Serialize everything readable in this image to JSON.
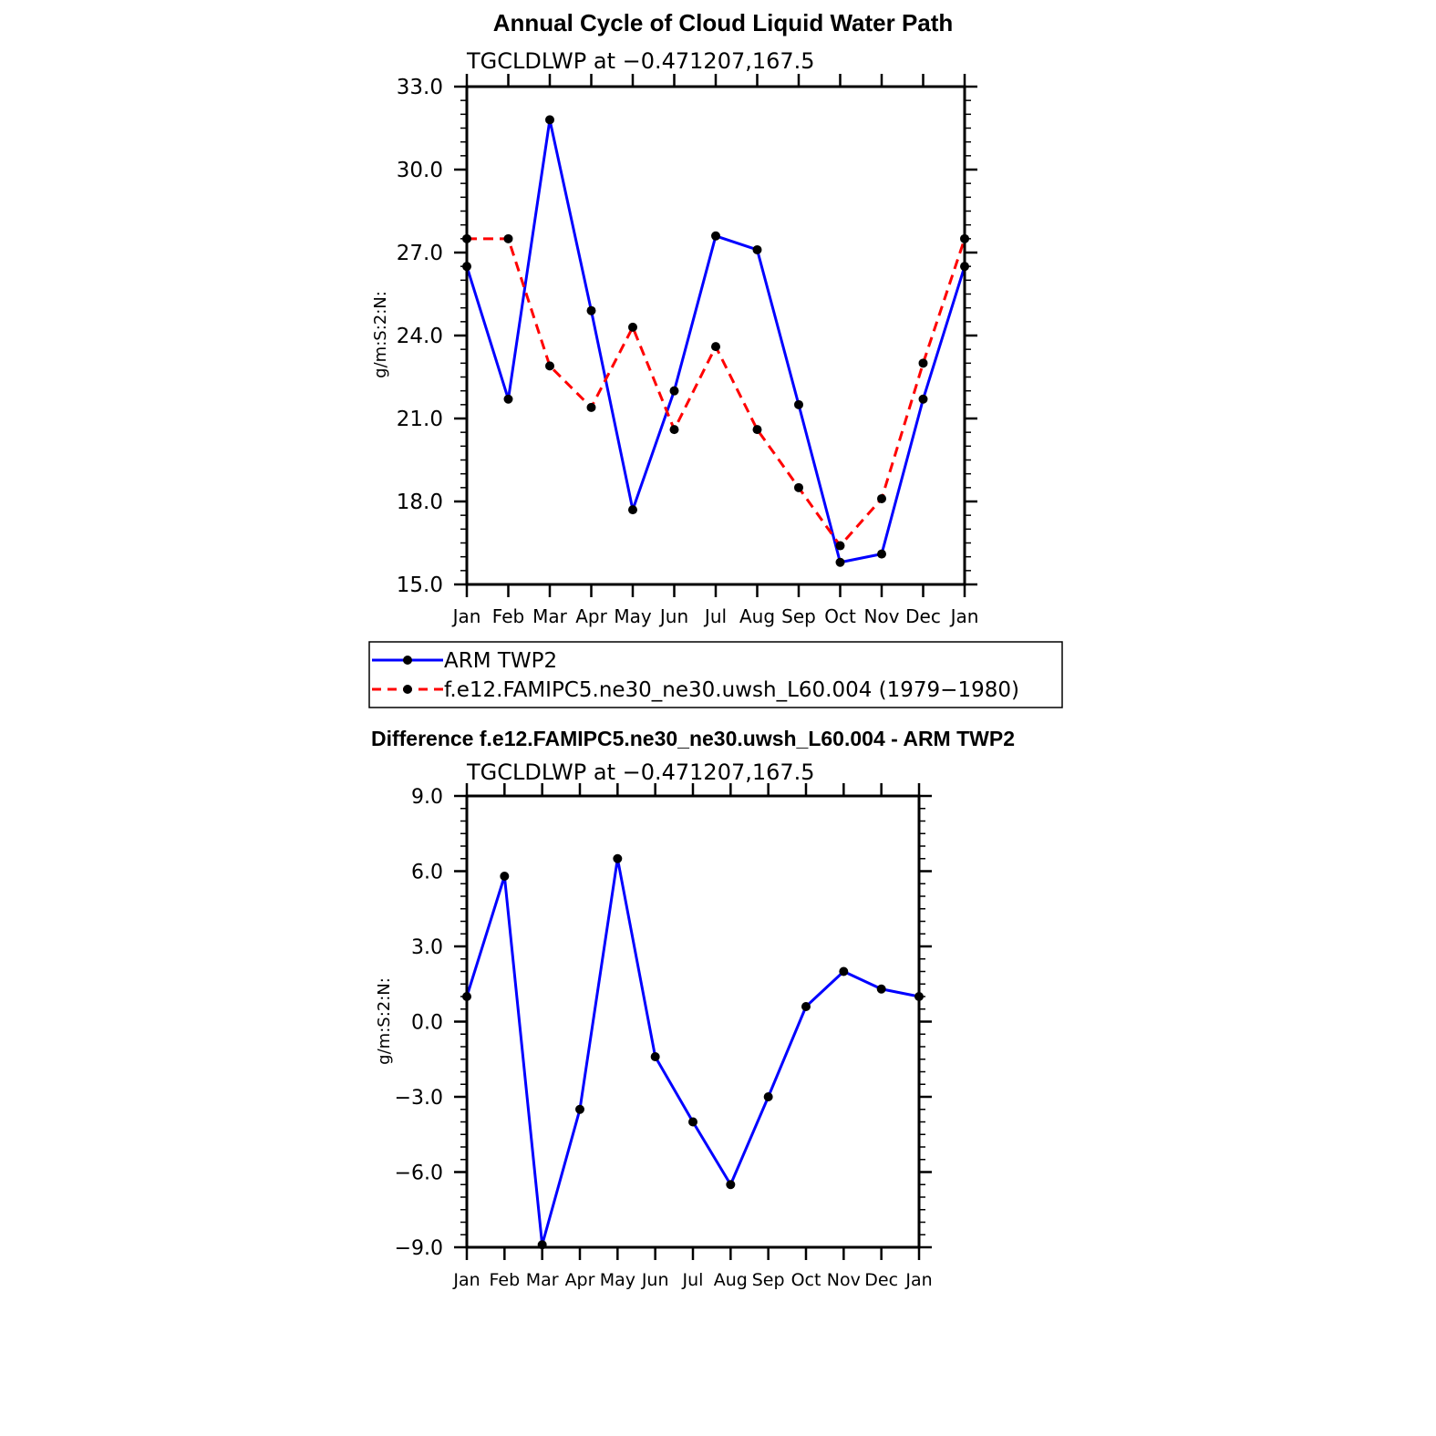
{
  "chart_data": [
    {
      "type": "line",
      "title": "Annual Cycle of Cloud Liquid Water Path",
      "subtitle": "TGCLDLWP at −0.471207,167.5",
      "ylabel": "g/m:S:2:N:",
      "xlabel": "",
      "ylim": [
        15.0,
        33.0
      ],
      "yticks": [
        "15.0",
        "18.0",
        "21.0",
        "24.0",
        "27.0",
        "30.0",
        "33.0"
      ],
      "categories": [
        "Jan",
        "Feb",
        "Mar",
        "Apr",
        "May",
        "Jun",
        "Jul",
        "Aug",
        "Sep",
        "Oct",
        "Nov",
        "Dec",
        "Jan"
      ],
      "series": [
        {
          "name": "ARM TWP2",
          "color": "#0000ff",
          "style": "solid",
          "values": [
            26.5,
            21.7,
            31.8,
            24.9,
            17.7,
            22.0,
            27.6,
            27.1,
            21.5,
            15.8,
            16.1,
            21.7,
            26.5
          ]
        },
        {
          "name": "f.e12.FAMIPC5.ne30_ne30.uwsh_L60.004 (1979−1980)",
          "color": "#ff0000",
          "style": "dashed",
          "values": [
            27.5,
            27.5,
            22.9,
            21.4,
            24.3,
            20.6,
            23.6,
            20.6,
            18.5,
            16.4,
            18.1,
            23.0,
            27.5
          ]
        }
      ],
      "legend": "below"
    },
    {
      "type": "line",
      "title": "Difference f.e12.FAMIPC5.ne30_ne30.uwsh_L60.004 - ARM TWP2",
      "subtitle": "TGCLDLWP at −0.471207,167.5",
      "ylabel": "g/m:S:2:N:",
      "xlabel": "",
      "ylim": [
        -9.0,
        9.0
      ],
      "yticks": [
        "−9.0",
        "−6.0",
        "−3.0",
        "0.0",
        "3.0",
        "6.0",
        "9.0"
      ],
      "categories": [
        "Jan",
        "Feb",
        "Mar",
        "Apr",
        "May",
        "Jun",
        "Jul",
        "Aug",
        "Sep",
        "Oct",
        "Nov",
        "Dec",
        "Jan"
      ],
      "series": [
        {
          "color": "#0000ff",
          "style": "solid",
          "values": [
            1.0,
            5.8,
            -8.9,
            -3.5,
            6.5,
            -1.4,
            -4.0,
            -6.5,
            -3.0,
            0.6,
            2.0,
            1.3,
            1.0
          ]
        }
      ]
    }
  ]
}
